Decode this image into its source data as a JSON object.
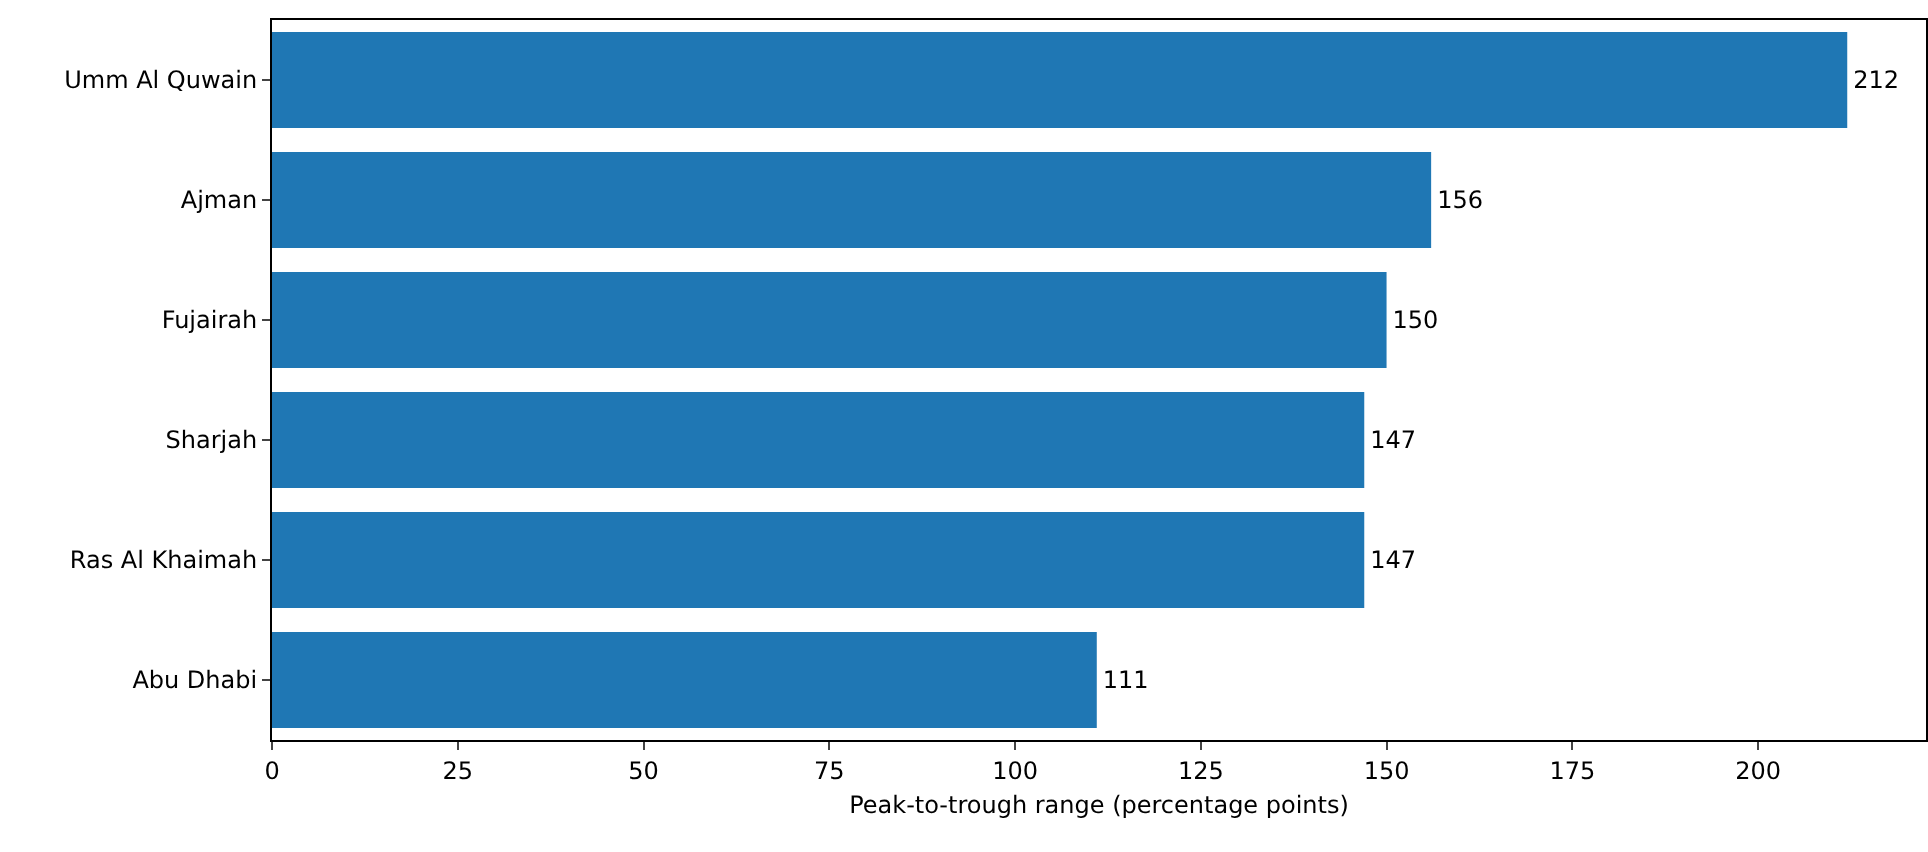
{
  "chart_data": {
    "type": "bar",
    "orientation": "horizontal",
    "xlabel": "Peak-to-trough range (percentage points)",
    "categories": [
      "Umm Al Quwain",
      "Ajman",
      "Fujairah",
      "Sharjah",
      "Ras Al Khaimah",
      "Abu Dhabi"
    ],
    "values": [
      212,
      156,
      150,
      147,
      147,
      111
    ],
    "color": "#1f77b4",
    "xlim": [
      0,
      222.6
    ],
    "xticks": [
      0,
      25,
      50,
      75,
      100,
      125,
      150,
      175,
      200
    ],
    "data_labels": true,
    "grid": false,
    "legend": false
  }
}
